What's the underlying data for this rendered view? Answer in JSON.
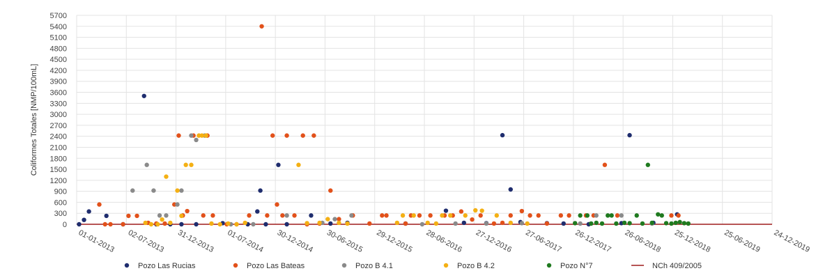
{
  "chart_data": {
    "type": "scatter",
    "title": "",
    "ylabel": "Coliformes Totales [NMP/100mL]",
    "xlabel": "",
    "ylim": [
      0,
      5700
    ],
    "y_ticks": [
      0,
      300,
      600,
      900,
      1200,
      1500,
      1800,
      2100,
      2400,
      2700,
      3000,
      3300,
      3600,
      3900,
      4200,
      4500,
      4800,
      5100,
      5400,
      5700
    ],
    "x_tick_labels": [
      "01-01-2013",
      "02-07-2013",
      "31-12-2013",
      "01-07-2014",
      "30-12-2014",
      "30-06-2015",
      "29-12-2015",
      "28-06-2016",
      "27-12-2016",
      "27-06-2017",
      "26-12-2017",
      "26-06-2018",
      "25-12-2018",
      "25-06-2019",
      "24-12-2019"
    ],
    "grid": true,
    "legend_position": "bottom",
    "series": [
      {
        "name": "Pozo Las Rucias",
        "color": "#1f2d6e",
        "points": [
          [
            "2013-01-10",
            0
          ],
          [
            "2013-01-28",
            120
          ],
          [
            "2013-02-15",
            350
          ],
          [
            "2013-04-20",
            230
          ],
          [
            "2013-06-20",
            0
          ],
          [
            "2013-09-05",
            3500
          ],
          [
            "2013-10-20",
            0
          ],
          [
            "2013-12-10",
            0
          ],
          [
            "2014-01-20",
            0
          ],
          [
            "2014-03-15",
            0
          ],
          [
            "2014-06-20",
            30
          ],
          [
            "2014-09-20",
            0
          ],
          [
            "2014-10-25",
            350
          ],
          [
            "2014-11-05",
            920
          ],
          [
            "2014-11-25",
            0
          ],
          [
            "2015-01-10",
            1620
          ],
          [
            "2015-02-10",
            0
          ],
          [
            "2015-05-10",
            240
          ],
          [
            "2015-07-20",
            20
          ],
          [
            "2015-09-20",
            40
          ],
          [
            "2016-04-20",
            20
          ],
          [
            "2016-09-15",
            370
          ],
          [
            "2016-11-20",
            40
          ],
          [
            "2017-02-10",
            30
          ],
          [
            "2017-04-10",
            2430
          ],
          [
            "2017-05-10",
            950
          ],
          [
            "2017-06-15",
            60
          ],
          [
            "2017-09-20",
            30
          ],
          [
            "2017-11-20",
            20
          ],
          [
            "2018-02-20",
            0
          ],
          [
            "2018-06-20",
            30
          ],
          [
            "2018-07-20",
            2430
          ],
          [
            "2018-10-15",
            40
          ],
          [
            "2019-01-10",
            270
          ]
        ]
      },
      {
        "name": "Pozo Las Bateas",
        "color": "#e2511a",
        "points": [
          [
            "2013-03-25",
            540
          ],
          [
            "2013-04-15",
            0
          ],
          [
            "2013-05-05",
            0
          ],
          [
            "2013-06-20",
            0
          ],
          [
            "2013-07-10",
            230
          ],
          [
            "2013-08-10",
            230
          ],
          [
            "2013-09-20",
            40
          ],
          [
            "2013-10-20",
            20
          ],
          [
            "2013-11-20",
            20
          ],
          [
            "2013-12-25",
            540
          ],
          [
            "2014-01-10",
            2420
          ],
          [
            "2014-01-25",
            240
          ],
          [
            "2014-02-10",
            360
          ],
          [
            "2014-03-05",
            2420
          ],
          [
            "2014-04-10",
            240
          ],
          [
            "2014-04-25",
            2420
          ],
          [
            "2014-05-15",
            240
          ],
          [
            "2014-07-05",
            0
          ],
          [
            "2014-08-10",
            0
          ],
          [
            "2014-09-25",
            240
          ],
          [
            "2014-11-10",
            5400
          ],
          [
            "2014-11-30",
            240
          ],
          [
            "2014-12-20",
            2420
          ],
          [
            "2015-01-05",
            540
          ],
          [
            "2015-01-25",
            240
          ],
          [
            "2015-02-10",
            2420
          ],
          [
            "2015-03-10",
            240
          ],
          [
            "2015-04-10",
            2420
          ],
          [
            "2015-04-25",
            0
          ],
          [
            "2015-05-20",
            2420
          ],
          [
            "2015-06-10",
            20
          ],
          [
            "2015-07-20",
            920
          ],
          [
            "2015-08-20",
            140
          ],
          [
            "2015-10-10",
            240
          ],
          [
            "2015-12-10",
            20
          ],
          [
            "2016-01-25",
            240
          ],
          [
            "2016-02-10",
            240
          ],
          [
            "2016-04-20",
            20
          ],
          [
            "2016-05-10",
            240
          ],
          [
            "2016-06-10",
            240
          ],
          [
            "2016-07-20",
            240
          ],
          [
            "2016-09-10",
            240
          ],
          [
            "2016-10-10",
            240
          ],
          [
            "2016-11-10",
            350
          ],
          [
            "2016-12-20",
            130
          ],
          [
            "2017-01-20",
            240
          ],
          [
            "2017-03-10",
            20
          ],
          [
            "2017-04-10",
            40
          ],
          [
            "2017-05-10",
            240
          ],
          [
            "2017-06-20",
            360
          ],
          [
            "2017-07-20",
            240
          ],
          [
            "2017-08-20",
            240
          ],
          [
            "2017-09-20",
            20
          ],
          [
            "2017-11-10",
            240
          ],
          [
            "2017-12-10",
            240
          ],
          [
            "2018-02-10",
            240
          ],
          [
            "2018-03-10",
            240
          ],
          [
            "2018-04-20",
            1620
          ],
          [
            "2018-06-05",
            240
          ],
          [
            "2018-12-20",
            240
          ],
          [
            "2019-01-15",
            240
          ]
        ]
      },
      {
        "name": "Pozo B 4.1",
        "color": "#8a8a8a",
        "points": [
          [
            "2013-07-25",
            920
          ],
          [
            "2013-09-15",
            1620
          ],
          [
            "2013-10-10",
            920
          ],
          [
            "2013-11-01",
            240
          ],
          [
            "2013-11-25",
            240
          ],
          [
            "2014-01-05",
            540
          ],
          [
            "2014-01-20",
            920
          ],
          [
            "2014-02-25",
            2420
          ],
          [
            "2014-03-15",
            2300
          ],
          [
            "2014-04-15",
            2420
          ],
          [
            "2014-07-20",
            0
          ],
          [
            "2014-10-10",
            0
          ],
          [
            "2015-02-10",
            240
          ],
          [
            "2015-06-20",
            40
          ],
          [
            "2015-08-05",
            140
          ],
          [
            "2015-10-05",
            240
          ],
          [
            "2016-06-20",
            0
          ],
          [
            "2016-10-20",
            20
          ],
          [
            "2017-02-10",
            20
          ],
          [
            "2017-06-20",
            30
          ],
          [
            "2018-01-20",
            20
          ],
          [
            "2018-03-20",
            240
          ],
          [
            "2018-06-20",
            240
          ],
          [
            "2018-10-10",
            20
          ]
        ]
      },
      {
        "name": "Pozo B 4.2",
        "color": "#f4b014",
        "points": [
          [
            "2013-09-10",
            40
          ],
          [
            "2013-10-01",
            0
          ],
          [
            "2013-10-25",
            0
          ],
          [
            "2013-11-10",
            130
          ],
          [
            "2013-11-25",
            1300
          ],
          [
            "2013-12-10",
            40
          ],
          [
            "2014-01-05",
            920
          ],
          [
            "2014-01-20",
            230
          ],
          [
            "2014-02-05",
            1620
          ],
          [
            "2014-02-25",
            1620
          ],
          [
            "2014-03-25",
            2420
          ],
          [
            "2014-04-05",
            2420
          ],
          [
            "2014-04-20",
            2420
          ],
          [
            "2014-05-10",
            20
          ],
          [
            "2014-06-10",
            0
          ],
          [
            "2014-07-10",
            20
          ],
          [
            "2014-08-10",
            0
          ],
          [
            "2014-09-10",
            40
          ],
          [
            "2015-03-25",
            1620
          ],
          [
            "2015-04-25",
            30
          ],
          [
            "2015-06-10",
            40
          ],
          [
            "2015-07-10",
            140
          ],
          [
            "2015-08-20",
            40
          ],
          [
            "2015-09-20",
            20
          ],
          [
            "2016-03-20",
            40
          ],
          [
            "2016-04-10",
            240
          ],
          [
            "2016-05-20",
            240
          ],
          [
            "2016-07-10",
            40
          ],
          [
            "2016-08-10",
            20
          ],
          [
            "2016-09-01",
            240
          ],
          [
            "2016-10-01",
            240
          ],
          [
            "2016-11-25",
            240
          ],
          [
            "2017-01-01",
            380
          ],
          [
            "2017-01-25",
            370
          ],
          [
            "2017-03-20",
            240
          ],
          [
            "2017-05-10",
            40
          ],
          [
            "2017-07-10",
            20
          ]
        ]
      },
      {
        "name": "Pozo N°7",
        "color": "#1f7a1f",
        "points": [
          [
            "2018-01-01",
            30
          ],
          [
            "2018-01-20",
            240
          ],
          [
            "2018-02-15",
            240
          ],
          [
            "2018-03-01",
            20
          ],
          [
            "2018-03-20",
            40
          ],
          [
            "2018-04-10",
            20
          ],
          [
            "2018-05-01",
            240
          ],
          [
            "2018-05-15",
            240
          ],
          [
            "2018-06-01",
            20
          ],
          [
            "2018-07-01",
            40
          ],
          [
            "2018-07-20",
            30
          ],
          [
            "2018-08-15",
            240
          ],
          [
            "2018-09-05",
            20
          ],
          [
            "2018-09-25",
            1620
          ],
          [
            "2018-10-10",
            40
          ],
          [
            "2018-11-01",
            270
          ],
          [
            "2018-11-15",
            240
          ],
          [
            "2018-12-01",
            30
          ],
          [
            "2018-12-20",
            20
          ],
          [
            "2019-01-05",
            40
          ],
          [
            "2019-01-20",
            60
          ],
          [
            "2019-02-05",
            30
          ],
          [
            "2019-02-20",
            20
          ]
        ]
      }
    ],
    "reference_line": {
      "name": "NCh 409/2005",
      "color": "#9e1c1c",
      "value": 0,
      "x_range": [
        "2013-01-01",
        "2019-12-24"
      ]
    }
  }
}
